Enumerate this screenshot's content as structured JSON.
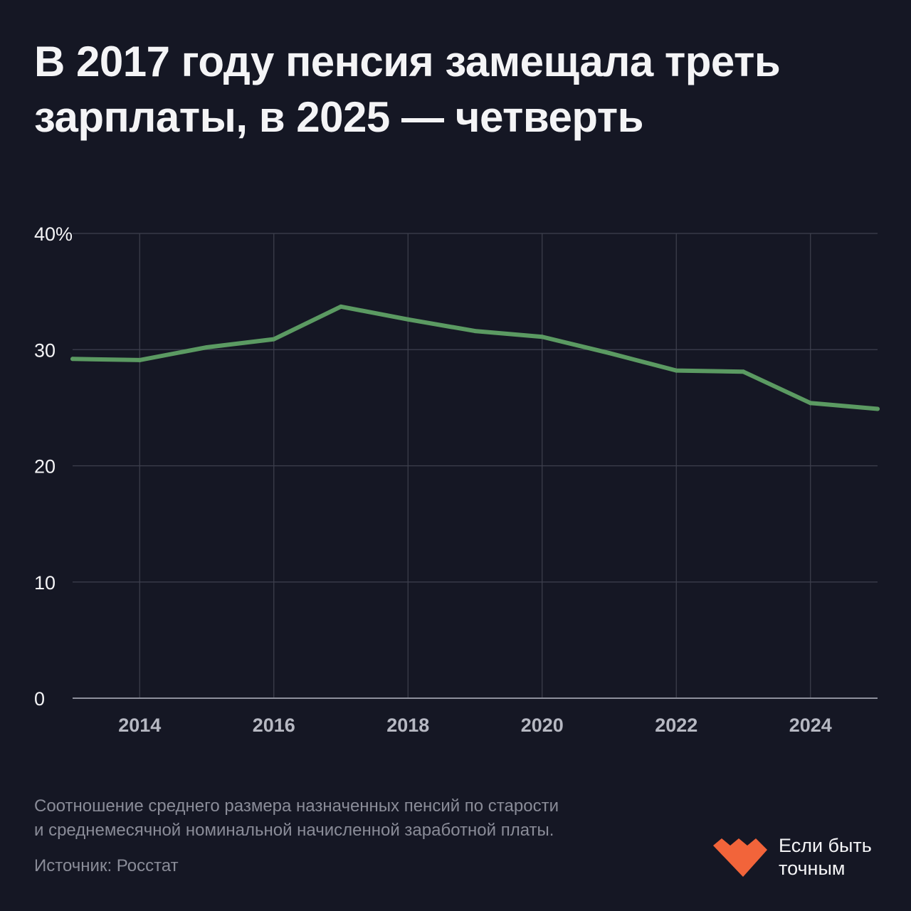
{
  "title": {
    "line1": "В 2017 году пенсия замещала треть",
    "line2": "зарплаты, в 2025 — четверть"
  },
  "chart_data": {
    "type": "line",
    "title": "В 2017 году пенсия замещала треть зарплаты, в 2025 — четверть",
    "x": [
      2013,
      2014,
      2015,
      2016,
      2017,
      2018,
      2019,
      2020,
      2021,
      2022,
      2023,
      2024,
      2025
    ],
    "series": [
      {
        "values": [
          29.2,
          29.1,
          30.2,
          30.9,
          33.7,
          32.6,
          31.6,
          31.1,
          29.7,
          28.2,
          28.1,
          25.4,
          24.9
        ]
      }
    ],
    "xlim": [
      2013,
      2025
    ],
    "ylim": [
      0,
      40
    ],
    "x_ticks": [
      2014,
      2016,
      2018,
      2020,
      2022,
      2024
    ],
    "y_ticks": [
      0,
      10,
      20,
      30,
      40
    ],
    "y_tick_labels": [
      "0",
      "10",
      "20",
      "30",
      "40%"
    ],
    "xlabel": "",
    "ylabel": "",
    "grid": true,
    "line_color": "#5b9a62"
  },
  "footnote": {
    "line1": "Соотношение среднего размера назначенных пенсий по старости",
    "line2": "и среднемесячной номинальной начисленной заработной платы."
  },
  "source": "Источник: Росстат",
  "brand": {
    "line1": "Если быть",
    "line2": "точным",
    "icon": "brand-logo-icon",
    "color": "#f2643a"
  },
  "colors": {
    "background": "#151724",
    "grid": "#3e404e",
    "text": "#f4f4f6",
    "muted": "#8a8c98"
  }
}
